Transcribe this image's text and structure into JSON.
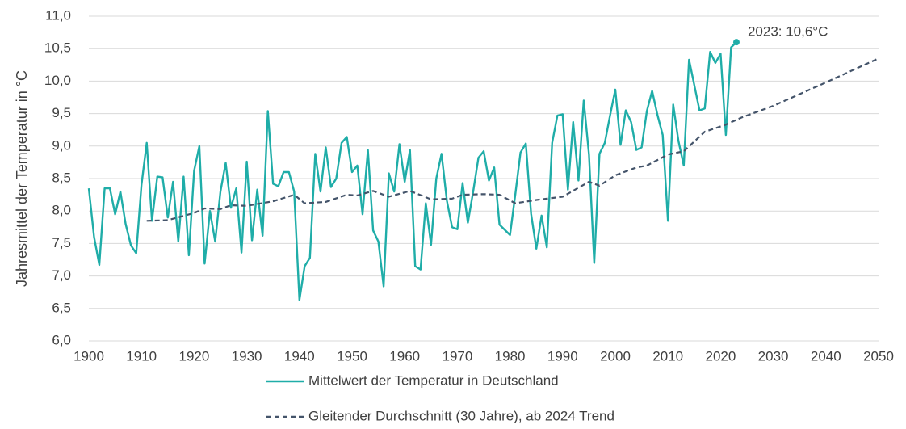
{
  "chart_data": {
    "type": "line",
    "y_label": "Jahresmittel der Temperatur in °C",
    "xlim": [
      1900,
      2050
    ],
    "xticks": [
      1900,
      1910,
      1920,
      1930,
      1940,
      1950,
      1960,
      1970,
      1980,
      1990,
      2000,
      2010,
      2020,
      2030,
      2040,
      2050
    ],
    "ylim": [
      6,
      11
    ],
    "yticks": [
      {
        "value": 6,
        "label": "6,0"
      },
      {
        "value": 6.5,
        "label": "6,5"
      },
      {
        "value": 7,
        "label": "7,0"
      },
      {
        "value": 7.5,
        "label": "7,5"
      },
      {
        "value": 8,
        "label": "8,0"
      },
      {
        "value": 8.5,
        "label": "8,5"
      },
      {
        "value": 9,
        "label": "9,0"
      },
      {
        "value": 9.5,
        "label": "9,5"
      },
      {
        "value": 10,
        "label": "10,0"
      },
      {
        "value": 10.5,
        "label": "10,5"
      },
      {
        "value": 11,
        "label": "11,0"
      }
    ],
    "grid": true,
    "legend": "bottom",
    "series": [
      {
        "name": "Mittelwert der Temperatur in Deutschland",
        "color": "#1fada8",
        "dash": false,
        "x": [
          1900,
          1901,
          1902,
          1903,
          1904,
          1905,
          1906,
          1907,
          1908,
          1909,
          1910,
          1911,
          1912,
          1913,
          1914,
          1915,
          1916,
          1917,
          1918,
          1919,
          1920,
          1921,
          1922,
          1923,
          1924,
          1925,
          1926,
          1927,
          1928,
          1929,
          1930,
          1931,
          1932,
          1933,
          1934,
          1935,
          1936,
          1937,
          1938,
          1939,
          1940,
          1941,
          1942,
          1943,
          1944,
          1945,
          1946,
          1947,
          1948,
          1949,
          1950,
          1951,
          1952,
          1953,
          1954,
          1955,
          1956,
          1957,
          1958,
          1959,
          1960,
          1961,
          1962,
          1963,
          1964,
          1965,
          1966,
          1967,
          1968,
          1969,
          1970,
          1971,
          1972,
          1973,
          1974,
          1975,
          1976,
          1977,
          1978,
          1979,
          1980,
          1981,
          1982,
          1983,
          1984,
          1985,
          1986,
          1987,
          1988,
          1989,
          1990,
          1991,
          1992,
          1993,
          1994,
          1995,
          1996,
          1997,
          1998,
          1999,
          2000,
          2001,
          2002,
          2003,
          2004,
          2005,
          2006,
          2007,
          2008,
          2009,
          2010,
          2011,
          2012,
          2013,
          2014,
          2015,
          2016,
          2017,
          2018,
          2019,
          2020,
          2021,
          2022,
          2023
        ],
        "values": [
          8.35,
          7.6,
          7.17,
          8.35,
          8.35,
          7.95,
          8.3,
          7.8,
          7.47,
          7.35,
          8.4,
          9.05,
          7.85,
          8.53,
          8.52,
          7.9,
          8.45,
          7.53,
          8.53,
          7.32,
          8.62,
          9.0,
          7.19,
          8.0,
          7.53,
          8.3,
          8.74,
          8.05,
          8.35,
          7.36,
          8.76,
          7.55,
          8.33,
          7.62,
          9.54,
          8.42,
          8.38,
          8.6,
          8.6,
          8.3,
          6.63,
          7.15,
          7.28,
          8.88,
          8.3,
          8.98,
          8.37,
          8.5,
          9.05,
          9.14,
          8.6,
          8.7,
          7.95,
          8.94,
          7.7,
          7.53,
          6.84,
          8.58,
          8.3,
          9.03,
          8.45,
          8.94,
          7.15,
          7.1,
          8.12,
          7.48,
          8.5,
          8.88,
          8.16,
          7.75,
          7.72,
          8.43,
          7.82,
          8.3,
          8.82,
          8.92,
          8.47,
          8.67,
          7.79,
          7.71,
          7.63,
          8.25,
          8.9,
          9.04,
          7.96,
          7.42,
          7.93,
          7.44,
          9.05,
          9.47,
          9.49,
          8.33,
          9.37,
          8.47,
          9.7,
          8.87,
          7.2,
          8.88,
          9.05,
          9.47,
          9.87,
          9.02,
          9.55,
          9.37,
          8.94,
          8.98,
          9.54,
          9.85,
          9.48,
          9.17,
          7.85,
          9.64,
          9.08,
          8.7,
          10.33,
          9.94,
          9.55,
          9.58,
          10.45,
          10.28,
          10.42,
          9.17,
          10.52,
          10.6
        ]
      },
      {
        "name": "Gleitender Durchschnitt (30 Jahre), ab 2024 Trend",
        "color": "#44546a",
        "dash": true,
        "x": [
          1911,
          1915,
          1920,
          1922,
          1925,
          1927,
          1930,
          1935,
          1939,
          1941,
          1945,
          1949,
          1951,
          1954,
          1957,
          1961,
          1965,
          1969,
          1971,
          1975,
          1978,
          1981,
          1985,
          1990,
          1995,
          1997,
          2000,
          2004,
          2006,
          2010,
          2013,
          2017,
          2021,
          2024,
          2030,
          2040,
          2050
        ],
        "values": [
          7.85,
          7.86,
          7.97,
          8.04,
          8.03,
          8.09,
          8.08,
          8.15,
          8.25,
          8.12,
          8.14,
          8.25,
          8.24,
          8.31,
          8.22,
          8.31,
          8.18,
          8.19,
          8.25,
          8.26,
          8.25,
          8.12,
          8.17,
          8.22,
          8.45,
          8.39,
          8.55,
          8.67,
          8.7,
          8.87,
          8.92,
          9.22,
          9.33,
          9.44,
          9.62,
          9.98,
          10.35
        ]
      }
    ],
    "annotations": [
      {
        "text": "2023: 10,6°C"
      }
    ]
  }
}
